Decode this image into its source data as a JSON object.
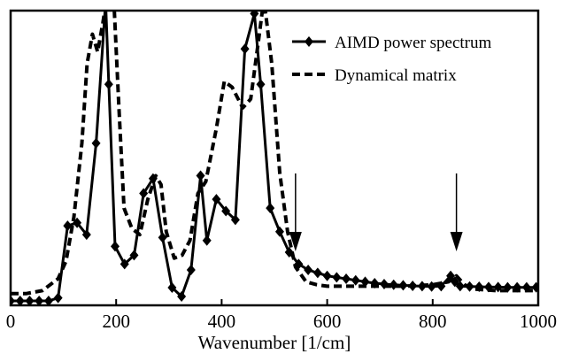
{
  "chart_data": {
    "type": "line",
    "xlabel": "Wavenumber [1/cm]",
    "ylabel": "",
    "xlim": [
      0,
      1000
    ],
    "ylim": [
      0,
      1
    ],
    "x_ticks": [
      "0",
      "200",
      "400",
      "600",
      "800",
      "1000"
    ],
    "grid": false,
    "legend_position": "top-right",
    "series": [
      {
        "name": "AIMD power spectrum",
        "style": "solid-diamond",
        "color": "#000000",
        "x": [
          0,
          18,
          36,
          54,
          72,
          90,
          108,
          126,
          144,
          162,
          180,
          186,
          198,
          216,
          234,
          252,
          270,
          288,
          306,
          324,
          342,
          360,
          372,
          390,
          408,
          426,
          444,
          462,
          474,
          492,
          510,
          528,
          546,
          564,
          582,
          600,
          618,
          636,
          654,
          672,
          690,
          708,
          726,
          744,
          762,
          780,
          798,
          816,
          834,
          842,
          852,
          870,
          888,
          906,
          924,
          942,
          960,
          978,
          996
        ],
        "y": [
          0.015,
          0.015,
          0.015,
          0.015,
          0.015,
          0.025,
          0.27,
          0.28,
          0.24,
          0.55,
          1.03,
          0.75,
          0.2,
          0.14,
          0.17,
          0.38,
          0.43,
          0.23,
          0.06,
          0.03,
          0.12,
          0.44,
          0.22,
          0.36,
          0.32,
          0.29,
          0.87,
          0.99,
          0.75,
          0.33,
          0.25,
          0.18,
          0.14,
          0.12,
          0.11,
          0.1,
          0.095,
          0.09,
          0.085,
          0.08,
          0.075,
          0.072,
          0.07,
          0.068,
          0.066,
          0.065,
          0.064,
          0.065,
          0.1,
          0.08,
          0.065,
          0.064,
          0.063,
          0.062,
          0.062,
          0.061,
          0.061,
          0.061,
          0.061
        ]
      },
      {
        "name": "Dynamical matrix",
        "style": "dashed",
        "color": "#000000",
        "x": [
          0,
          30,
          60,
          90,
          105,
          120,
          135,
          145,
          155,
          165,
          175,
          185,
          195,
          205,
          215,
          230,
          245,
          260,
          275,
          285,
          295,
          310,
          325,
          340,
          355,
          370,
          390,
          405,
          420,
          440,
          455,
          470,
          480,
          495,
          510,
          525,
          540,
          560,
          580,
          600,
          650,
          700,
          750,
          800,
          830,
          845,
          860,
          880,
          920,
          1000
        ],
        "y": [
          0.04,
          0.04,
          0.05,
          0.09,
          0.15,
          0.3,
          0.55,
          0.82,
          0.92,
          0.86,
          0.96,
          1.08,
          1.06,
          0.68,
          0.33,
          0.26,
          0.24,
          0.36,
          0.44,
          0.41,
          0.25,
          0.16,
          0.17,
          0.22,
          0.38,
          0.42,
          0.6,
          0.76,
          0.74,
          0.67,
          0.7,
          0.9,
          1.04,
          0.82,
          0.45,
          0.25,
          0.13,
          0.08,
          0.07,
          0.065,
          0.065,
          0.065,
          0.065,
          0.07,
          0.08,
          0.1,
          0.07,
          0.055,
          0.05,
          0.05
        ]
      }
    ],
    "annotations": [
      {
        "type": "arrow",
        "x": 540
      },
      {
        "type": "arrow",
        "x": 845
      }
    ]
  }
}
